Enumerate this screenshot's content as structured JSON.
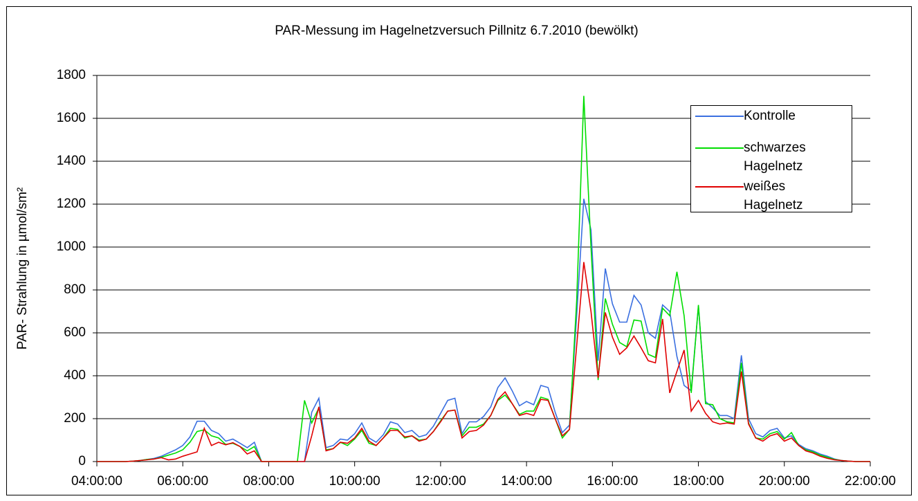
{
  "chart_data": {
    "type": "line",
    "title": "PAR-Messung im Hagelnetzversuch Pillnitz 6.7.2010 (bewölkt)",
    "y_label": "PAR- Strahlung in µmol/sm²",
    "x": [
      "04:00:00",
      "04:10:00",
      "04:20:00",
      "04:30:00",
      "04:40:00",
      "04:50:00",
      "05:00:00",
      "05:10:00",
      "05:20:00",
      "05:30:00",
      "05:40:00",
      "05:50:00",
      "06:00:00",
      "06:10:00",
      "06:20:00",
      "06:30:00",
      "06:40:00",
      "06:50:00",
      "07:00:00",
      "07:10:00",
      "07:20:00",
      "07:30:00",
      "07:40:00",
      "07:50:00",
      "08:00:00",
      "08:10:00",
      "08:20:00",
      "08:30:00",
      "08:40:00",
      "08:50:00",
      "09:00:00",
      "09:10:00",
      "09:20:00",
      "09:30:00",
      "09:40:00",
      "09:50:00",
      "10:00:00",
      "10:10:00",
      "10:20:00",
      "10:30:00",
      "10:40:00",
      "10:50:00",
      "11:00:00",
      "11:10:00",
      "11:20:00",
      "11:30:00",
      "11:40:00",
      "11:50:00",
      "12:00:00",
      "12:10:00",
      "12:20:00",
      "12:30:00",
      "12:40:00",
      "12:50:00",
      "13:00:00",
      "13:10:00",
      "13:20:00",
      "13:30:00",
      "13:40:00",
      "13:50:00",
      "14:00:00",
      "14:10:00",
      "14:20:00",
      "14:30:00",
      "14:40:00",
      "14:50:00",
      "15:00:00",
      "15:10:00",
      "15:20:00",
      "15:30:00",
      "15:40:00",
      "15:50:00",
      "16:00:00",
      "16:10:00",
      "16:20:00",
      "16:30:00",
      "16:40:00",
      "16:50:00",
      "17:00:00",
      "17:10:00",
      "17:20:00",
      "17:30:00",
      "17:40:00",
      "17:50:00",
      "18:00:00",
      "18:10:00",
      "18:20:00",
      "18:30:00",
      "18:40:00",
      "18:50:00",
      "19:00:00",
      "19:10:00",
      "19:20:00",
      "19:30:00",
      "19:40:00",
      "19:50:00",
      "20:00:00",
      "20:10:00",
      "20:20:00",
      "20:30:00",
      "20:40:00",
      "20:50:00",
      "21:00:00",
      "21:10:00",
      "21:20:00",
      "21:30:00",
      "21:40:00",
      "21:50:00",
      "22:00:00"
    ],
    "series": [
      {
        "name": "Kontrolle",
        "color": "#3a6fe0",
        "values": [
          0,
          0,
          0,
          0,
          0,
          2,
          5,
          10,
          15,
          25,
          40,
          55,
          75,
          115,
          188,
          188,
          145,
          130,
          95,
          105,
          85,
          65,
          90,
          0,
          0,
          0,
          0,
          0,
          0,
          0,
          230,
          295,
          65,
          75,
          105,
          100,
          130,
          180,
          110,
          90,
          125,
          185,
          175,
          135,
          145,
          115,
          125,
          165,
          225,
          285,
          295,
          130,
          185,
          185,
          210,
          255,
          345,
          390,
          330,
          260,
          280,
          265,
          355,
          345,
          230,
          135,
          170,
          680,
          1225,
          1080,
          470,
          900,
          735,
          650,
          650,
          775,
          730,
          600,
          575,
          730,
          700,
          490,
          355,
          330,
          725,
          280,
          250,
          215,
          215,
          200,
          495,
          200,
          130,
          115,
          145,
          155,
          110,
          120,
          80,
          60,
          50,
          35,
          25,
          12,
          5,
          2,
          0,
          0,
          0
        ]
      },
      {
        "name": "schwarzes Hagelnetz",
        "color": "#00dd00",
        "values": [
          0,
          0,
          0,
          0,
          0,
          2,
          5,
          10,
          12,
          20,
          30,
          40,
          55,
          90,
          140,
          148,
          120,
          110,
          80,
          85,
          70,
          50,
          70,
          0,
          0,
          0,
          0,
          0,
          0,
          285,
          180,
          250,
          55,
          60,
          90,
          75,
          105,
          145,
          85,
          75,
          110,
          155,
          150,
          110,
          120,
          100,
          105,
          140,
          190,
          235,
          240,
          120,
          160,
          160,
          175,
          215,
          285,
          310,
          270,
          220,
          235,
          235,
          300,
          290,
          200,
          110,
          150,
          750,
          1705,
          1000,
          380,
          760,
          640,
          555,
          535,
          660,
          655,
          500,
          485,
          715,
          680,
          885,
          680,
          320,
          730,
          270,
          265,
          200,
          185,
          180,
          460,
          180,
          110,
          105,
          130,
          140,
          105,
          135,
          75,
          55,
          45,
          30,
          20,
          10,
          5,
          2,
          0,
          0,
          0
        ]
      },
      {
        "name": "weißes Hagelnetz",
        "color": "#e00000",
        "values": [
          0,
          0,
          0,
          0,
          0,
          2,
          5,
          8,
          12,
          18,
          8,
          12,
          25,
          35,
          45,
          155,
          75,
          90,
          78,
          88,
          70,
          35,
          50,
          0,
          0,
          0,
          0,
          0,
          0,
          0,
          120,
          255,
          50,
          60,
          90,
          85,
          110,
          155,
          95,
          75,
          110,
          145,
          145,
          115,
          120,
          95,
          105,
          140,
          185,
          235,
          240,
          110,
          140,
          145,
          170,
          215,
          290,
          325,
          270,
          215,
          225,
          215,
          290,
          285,
          200,
          120,
          150,
          540,
          930,
          700,
          390,
          695,
          580,
          500,
          530,
          585,
          530,
          470,
          460,
          665,
          320,
          420,
          520,
          235,
          285,
          225,
          185,
          175,
          180,
          175,
          420,
          175,
          110,
          95,
          120,
          130,
          95,
          110,
          75,
          50,
          40,
          25,
          15,
          8,
          5,
          2,
          0,
          0,
          0
        ]
      }
    ],
    "xlim": [
      "04:00:00",
      "22:00:00"
    ],
    "xticks": [
      "04:00:00",
      "06:00:00",
      "08:00:00",
      "10:00:00",
      "12:00:00",
      "14:00:00",
      "16:00:00",
      "18:00:00",
      "20:00:00",
      "22:00:00"
    ],
    "ylim": [
      0,
      1800
    ],
    "yticks": [
      0,
      200,
      400,
      600,
      800,
      1000,
      1200,
      1400,
      1600,
      1800
    ],
    "grid": true,
    "legend": "upper right"
  }
}
